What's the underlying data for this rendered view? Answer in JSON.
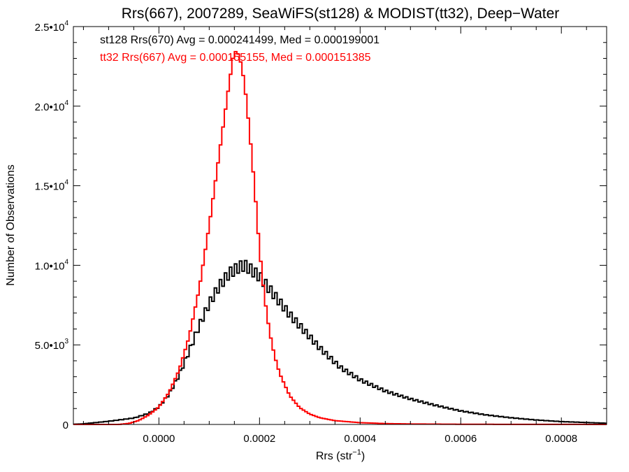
{
  "chart_data": {
    "type": "line",
    "title": "Rrs(667), 2007289, SeaWiFS(st128) & MODIST(tt32), Deep−Water",
    "xlabel": "Rrs (str",
    "xlabel_sup": "−1",
    "xlabel_end": ")",
    "ylabel": "Number of Observations",
    "xlim": [
      -0.00017,
      0.00089
    ],
    "ylim": [
      0,
      25000
    ],
    "grid": false,
    "bin_width": 5e-06,
    "x_ticks": [
      {
        "value": 0.0,
        "label": "0.0000"
      },
      {
        "value": 0.0002,
        "label": "0.0002"
      },
      {
        "value": 0.0004,
        "label": "0.0004"
      },
      {
        "value": 0.0006,
        "label": "0.0006"
      },
      {
        "value": 0.0008,
        "label": "0.0008"
      }
    ],
    "y_ticks": [
      {
        "value": 0,
        "label": "0"
      },
      {
        "value": 5000,
        "mantissa": "5.0•10",
        "exp": "3"
      },
      {
        "value": 10000,
        "mantissa": "1.0•10",
        "exp": "4"
      },
      {
        "value": 15000,
        "mantissa": "1.5•10",
        "exp": "4"
      },
      {
        "value": 20000,
        "mantissa": "2.0•10",
        "exp": "4"
      },
      {
        "value": 25000,
        "mantissa": "2.5•10",
        "exp": "4"
      }
    ],
    "annotations": [
      {
        "text": "st128 Rrs(670) Avg = 0.000241499, Med = 0.000199001",
        "color": "#000000"
      },
      {
        "text": "tt32 Rrs(667) Avg = 0.000155155, Med = 0.000151385",
        "color": "#ff0000"
      }
    ],
    "series": [
      {
        "color": "#000000",
        "style": "step",
        "points": [
          [
            -0.00017,
            10
          ],
          [
            -0.00015,
            40
          ],
          [
            -0.0001,
            200
          ],
          [
            -5e-05,
            400
          ],
          [
            -2e-05,
            700
          ],
          [
            0.0,
            1100
          ],
          [
            2e-05,
            1900
          ],
          [
            4e-05,
            3100
          ],
          [
            6e-05,
            4600
          ],
          [
            8e-05,
            6200
          ],
          [
            0.0001,
            7600
          ],
          [
            0.00012,
            8700
          ],
          [
            0.00014,
            9500
          ],
          [
            0.00016,
            9900
          ],
          [
            0.00017,
            10000
          ],
          [
            0.00018,
            9800
          ],
          [
            0.0002,
            9300
          ],
          [
            0.00022,
            8500
          ],
          [
            0.00024,
            7700
          ],
          [
            0.00026,
            6900
          ],
          [
            0.00028,
            6200
          ],
          [
            0.0003,
            5500
          ],
          [
            0.00032,
            4800
          ],
          [
            0.00034,
            4200
          ],
          [
            0.00036,
            3600
          ],
          [
            0.00038,
            3200
          ],
          [
            0.0004,
            2800
          ],
          [
            0.00045,
            2100
          ],
          [
            0.0005,
            1600
          ],
          [
            0.00055,
            1200
          ],
          [
            0.0006,
            850
          ],
          [
            0.00065,
            600
          ],
          [
            0.0007,
            420
          ],
          [
            0.00075,
            280
          ],
          [
            0.0008,
            180
          ],
          [
            0.00085,
            120
          ],
          [
            0.00089,
            80
          ]
        ]
      },
      {
        "color": "#ff0000",
        "style": "step",
        "points": [
          [
            -0.00017,
            0
          ],
          [
            -8e-05,
            0
          ],
          [
            -6e-05,
            60
          ],
          [
            -4e-05,
            250
          ],
          [
            -2e-05,
            600
          ],
          [
            0.0,
            1100
          ],
          [
            2e-05,
            2000
          ],
          [
            4e-05,
            3400
          ],
          [
            6e-05,
            5500
          ],
          [
            8e-05,
            8500
          ],
          [
            0.0001,
            12500
          ],
          [
            0.00012,
            17000
          ],
          [
            0.00014,
            21500
          ],
          [
            0.00015,
            23500
          ],
          [
            0.00016,
            23200
          ],
          [
            0.00017,
            21500
          ],
          [
            0.00018,
            18500
          ],
          [
            0.00019,
            15000
          ],
          [
            0.0002,
            11000
          ],
          [
            0.00021,
            8000
          ],
          [
            0.00022,
            5800
          ],
          [
            0.00023,
            4300
          ],
          [
            0.00024,
            3200
          ],
          [
            0.00026,
            1800
          ],
          [
            0.00028,
            1050
          ],
          [
            0.0003,
            650
          ],
          [
            0.00032,
            420
          ],
          [
            0.00035,
            240
          ],
          [
            0.0004,
            110
          ],
          [
            0.00045,
            55
          ],
          [
            0.0005,
            30
          ],
          [
            0.0006,
            12
          ],
          [
            0.0007,
            6
          ],
          [
            0.00089,
            2
          ]
        ]
      }
    ]
  }
}
